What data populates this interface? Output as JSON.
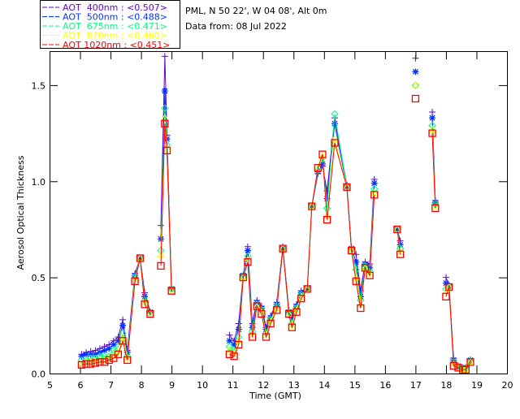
{
  "chart_data": {
    "type": "line",
    "header_lines": [
      "PML, N 50 22', W 04 08', Alt 0m",
      "Data from: 08 Jul 2022"
    ],
    "xlabel": "Time (GMT)",
    "ylabel": "Aerosol Optical Thickness",
    "xlim": [
      5,
      20
    ],
    "ylim": [
      0,
      1.677
    ],
    "xticks": [
      "5",
      "6",
      "7",
      "8",
      "9",
      "10",
      "11",
      "12",
      "13",
      "14",
      "15",
      "16",
      "17",
      "18",
      "19",
      "20"
    ],
    "yticks": [
      "0.0",
      "0.5",
      "1.0",
      "1.5"
    ],
    "legend_position": "top-left",
    "x": [
      6.05,
      6.2,
      6.35,
      6.5,
      6.65,
      6.8,
      6.95,
      7.1,
      7.25,
      7.4,
      7.55,
      7.8,
      7.97,
      8.12,
      8.3,
      null,
      8.65,
      8.78,
      8.85,
      9.0,
      null,
      10.9,
      11.05,
      11.2,
      11.35,
      11.5,
      11.65,
      11.8,
      11.95,
      12.1,
      12.25,
      12.45,
      12.65,
      12.85,
      12.95,
      13.1,
      13.25,
      13.45,
      13.6,
      13.8,
      13.95,
      14.1,
      14.35,
      14.75,
      14.9,
      15.05,
      15.2,
      15.35,
      15.5,
      15.65,
      null,
      16.4,
      16.5,
      null,
      17.0,
      null,
      17.55,
      17.65,
      null,
      18.0,
      18.1,
      18.25,
      18.4,
      18.55,
      18.65,
      18.8
    ],
    "series": [
      {
        "name": "AOT  400nm",
        "mean": "<0.507>",
        "color": "#6600cc",
        "marker": "plus",
        "values": [
          0.1,
          0.11,
          0.115,
          0.12,
          0.13,
          0.14,
          0.15,
          0.17,
          0.19,
          0.28,
          0.12,
          0.52,
          0.6,
          0.42,
          0.32,
          null,
          0.77,
          1.65,
          1.24,
          0.45,
          null,
          0.2,
          0.17,
          0.26,
          0.51,
          0.66,
          0.26,
          0.38,
          0.35,
          0.24,
          0.3,
          0.37,
          0.66,
          0.33,
          0.3,
          0.36,
          0.43,
          0.44,
          0.87,
          1.04,
          1.08,
          0.95,
          1.33,
          0.98,
          0.65,
          0.62,
          0.43,
          0.58,
          0.57,
          1.01,
          null,
          0.75,
          0.69,
          null,
          1.64,
          null,
          1.36,
          0.9,
          null,
          0.5,
          0.46,
          0.08,
          0.04,
          0.03,
          0.03,
          0.07
        ]
      },
      {
        "name": "AOT  500nm",
        "mean": "<0.488>",
        "color": "#0033ff",
        "marker": "asterisk",
        "values": [
          0.09,
          0.1,
          0.1,
          0.1,
          0.11,
          0.12,
          0.13,
          0.15,
          0.17,
          0.25,
          0.11,
          0.51,
          0.6,
          0.4,
          0.32,
          null,
          0.7,
          1.47,
          1.22,
          0.44,
          null,
          0.17,
          0.15,
          0.23,
          0.51,
          0.64,
          0.24,
          0.37,
          0.34,
          0.23,
          0.29,
          0.36,
          0.65,
          0.32,
          0.29,
          0.35,
          0.42,
          0.44,
          0.87,
          1.05,
          1.09,
          0.91,
          1.3,
          0.97,
          0.65,
          0.58,
          0.4,
          0.57,
          0.55,
          0.99,
          null,
          0.75,
          0.67,
          null,
          1.57,
          null,
          1.33,
          0.89,
          null,
          0.47,
          0.45,
          0.07,
          0.04,
          0.03,
          0.03,
          0.07
        ]
      },
      {
        "name": "AOT  675nm",
        "mean": "<0.471>",
        "color": "#00ff7f",
        "marker": "diamond",
        "values": [
          0.07,
          0.07,
          0.08,
          0.08,
          0.09,
          0.09,
          0.09,
          0.12,
          0.14,
          0.21,
          0.09,
          0.5,
          0.6,
          0.38,
          0.31,
          null,
          0.64,
          1.38,
          1.19,
          0.44,
          null,
          0.14,
          0.12,
          0.19,
          0.5,
          0.61,
          0.22,
          0.36,
          0.33,
          0.21,
          0.28,
          0.35,
          0.65,
          0.32,
          0.26,
          0.34,
          0.41,
          0.44,
          0.87,
          1.06,
          1.12,
          0.86,
          1.35,
          0.97,
          0.64,
          0.54,
          0.38,
          0.56,
          0.53,
          0.96,
          null,
          0.75,
          0.65,
          null,
          1.5,
          null,
          1.29,
          0.88,
          null,
          0.44,
          0.45,
          0.06,
          0.035,
          0.025,
          0.025,
          0.065
        ]
      },
      {
        "name": "AOT  870nm",
        "mean": "<0.460>",
        "color": "#ffff00",
        "marker": "triangle",
        "values": [
          0.05,
          0.06,
          0.06,
          0.065,
          0.07,
          0.07,
          0.08,
          0.09,
          0.11,
          0.19,
          0.08,
          0.49,
          0.6,
          0.37,
          0.31,
          null,
          0.62,
          1.33,
          1.17,
          0.43,
          null,
          0.12,
          0.1,
          0.17,
          0.5,
          0.59,
          0.2,
          0.35,
          0.32,
          0.2,
          0.27,
          0.34,
          0.65,
          0.31,
          0.25,
          0.33,
          0.4,
          0.44,
          0.87,
          1.07,
          1.13,
          0.82,
          1.22,
          0.97,
          0.64,
          0.5,
          0.36,
          0.55,
          0.52,
          0.94,
          null,
          0.75,
          0.63,
          null,
          1.5,
          null,
          1.27,
          0.87,
          null,
          0.42,
          0.45,
          0.05,
          0.03,
          0.02,
          0.02,
          0.06
        ]
      },
      {
        "name": "AOT 1020nm",
        "mean": "<0.451>",
        "color": "#ff0000",
        "marker": "square",
        "values": [
          0.045,
          0.05,
          0.05,
          0.055,
          0.06,
          0.06,
          0.07,
          0.08,
          0.1,
          0.17,
          0.07,
          0.48,
          0.6,
          0.36,
          0.31,
          null,
          0.56,
          1.3,
          1.16,
          0.43,
          null,
          0.1,
          0.09,
          0.15,
          0.5,
          0.58,
          0.19,
          0.35,
          0.31,
          0.19,
          0.26,
          0.33,
          0.65,
          0.31,
          0.24,
          0.32,
          0.39,
          0.44,
          0.87,
          1.07,
          1.14,
          0.8,
          1.2,
          0.97,
          0.64,
          0.48,
          0.34,
          0.55,
          0.51,
          0.93,
          null,
          0.75,
          0.62,
          null,
          1.43,
          null,
          1.25,
          0.86,
          null,
          0.4,
          0.45,
          0.04,
          0.03,
          0.02,
          0.02,
          0.06
        ]
      }
    ]
  }
}
